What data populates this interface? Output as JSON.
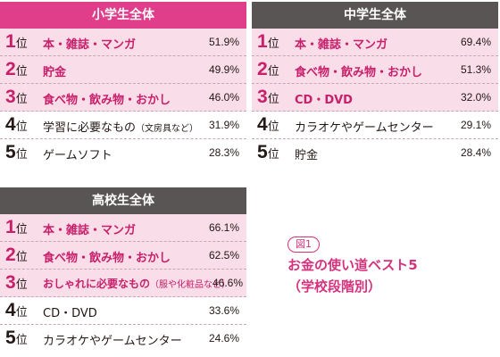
{
  "colors": {
    "pink_header": "#e03d8a",
    "gray_header": "#5a5555",
    "highlight_row": "#f9dde8",
    "accent_text": "#c8206b"
  },
  "rank_suffix": "位",
  "panels": [
    {
      "title": "小学生全体",
      "rows": [
        {
          "rank": "1",
          "label": "本・雑誌・マンガ",
          "sub": "",
          "pct": "51.9%"
        },
        {
          "rank": "2",
          "label": "貯金",
          "sub": "",
          "pct": "49.9%"
        },
        {
          "rank": "3",
          "label": "食べ物・飲み物・おかし",
          "sub": "",
          "pct": "46.0%"
        },
        {
          "rank": "4",
          "label": "学習に必要なもの",
          "sub": "（文房具など）",
          "pct": "31.9%"
        },
        {
          "rank": "5",
          "label": "ゲームソフト",
          "sub": "",
          "pct": "28.3%"
        }
      ]
    },
    {
      "title": "中学生全体",
      "rows": [
        {
          "rank": "1",
          "label": "本・雑誌・マンガ",
          "sub": "",
          "pct": "69.4%"
        },
        {
          "rank": "2",
          "label": "食べ物・飲み物・おかし",
          "sub": "",
          "pct": "51.3%"
        },
        {
          "rank": "3",
          "label": "CD・DVD",
          "sub": "",
          "pct": "32.0%"
        },
        {
          "rank": "4",
          "label": "カラオケやゲームセンター",
          "sub": "",
          "pct": "29.1%"
        },
        {
          "rank": "5",
          "label": "貯金",
          "sub": "",
          "pct": "28.4%"
        }
      ]
    },
    {
      "title": "高校生全体",
      "rows": [
        {
          "rank": "1",
          "label": "本・雑誌・マンガ",
          "sub": "",
          "pct": "66.1%"
        },
        {
          "rank": "2",
          "label": "食べ物・飲み物・おかし",
          "sub": "",
          "pct": "62.5%"
        },
        {
          "rank": "3",
          "label": "おしゃれに必要なもの",
          "sub": "（服や化粧品など）",
          "pct": "46.6%"
        },
        {
          "rank": "4",
          "label": "CD・DVD",
          "sub": "",
          "pct": "33.6%"
        },
        {
          "rank": "5",
          "label": "カラオケやゲームセンター",
          "sub": "",
          "pct": "24.6%"
        }
      ]
    }
  ],
  "caption": {
    "badge": "図1",
    "line1": "お金の使い道ベスト5",
    "line2": "（学校段階別）"
  }
}
